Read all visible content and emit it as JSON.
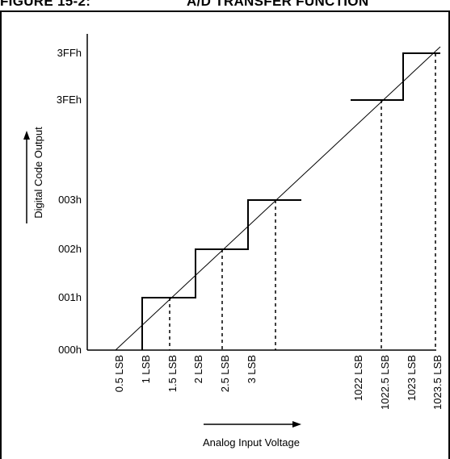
{
  "figure": {
    "number_label": "FIGURE 15-2:",
    "title": "A/D TRANSFER FUNCTION"
  },
  "y_axis": {
    "label": "Digital Code Output",
    "ticks": [
      "000h",
      "001h",
      "002h",
      "003h",
      "3FEh",
      "3FFh"
    ]
  },
  "x_axis": {
    "label": "Analog Input Voltage",
    "ticks": [
      "0.5 LSB",
      "1 LSB",
      "1.5 LSB",
      "2 LSB",
      "2.5 LSB",
      "3 LSB",
      "1022 LSB",
      "1022.5 LSB",
      "1023 LSB",
      "1023.5 LSB"
    ]
  },
  "colors": {
    "line": "#000000",
    "background": "#ffffff"
  }
}
